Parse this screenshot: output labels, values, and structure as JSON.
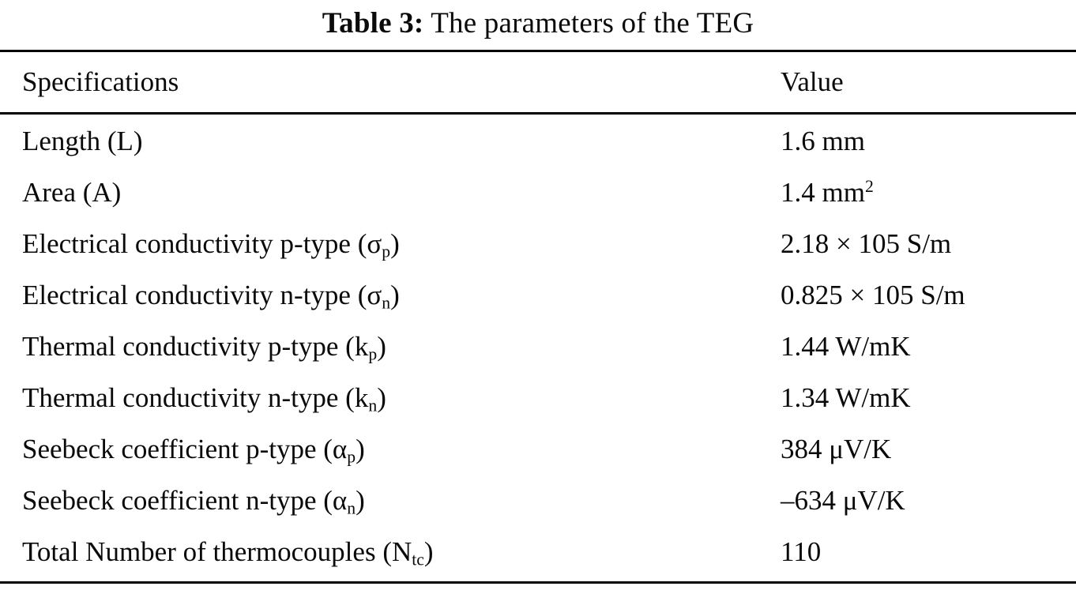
{
  "caption": {
    "label": "Table 3:",
    "text": " The parameters of the TEG"
  },
  "table": {
    "headers": {
      "spec": "Specifications",
      "value": "Value"
    },
    "rows": [
      {
        "spec_main": "Length (L)",
        "spec_sub": "",
        "spec_end": "",
        "value_main": "1.6 mm",
        "value_sup": ""
      },
      {
        "spec_main": "Area (A)",
        "spec_sub": "",
        "spec_end": "",
        "value_main": "1.4 mm",
        "value_sup": "2"
      },
      {
        "spec_main": "Electrical conductivity p-type (σ",
        "spec_sub": "p",
        "spec_end": ")",
        "value_main": "2.18 × 105 S/m",
        "value_sup": ""
      },
      {
        "spec_main": "Electrical conductivity n-type (σ",
        "spec_sub": "n",
        "spec_end": ")",
        "value_main": "0.825 × 105 S/m",
        "value_sup": ""
      },
      {
        "spec_main": "Thermal conductivity p-type (k",
        "spec_sub": "p",
        "spec_end": ")",
        "value_main": "1.44 W/mK",
        "value_sup": ""
      },
      {
        "spec_main": "Thermal conductivity n-type (k",
        "spec_sub": "n",
        "spec_end": ")",
        "value_main": "1.34 W/mK",
        "value_sup": ""
      },
      {
        "spec_main": "Seebeck coefficient p-type (α",
        "spec_sub": "p",
        "spec_end": ")",
        "value_main": "384 μV/K",
        "value_sup": ""
      },
      {
        "spec_main": "Seebeck coefficient n-type (α",
        "spec_sub": "n",
        "spec_end": ")",
        "value_main": "–634 μV/K",
        "value_sup": ""
      },
      {
        "spec_main": "Total Number of thermocouples (N",
        "spec_sub": "tc",
        "spec_end": ")",
        "value_main": "110",
        "value_sup": ""
      }
    ]
  }
}
